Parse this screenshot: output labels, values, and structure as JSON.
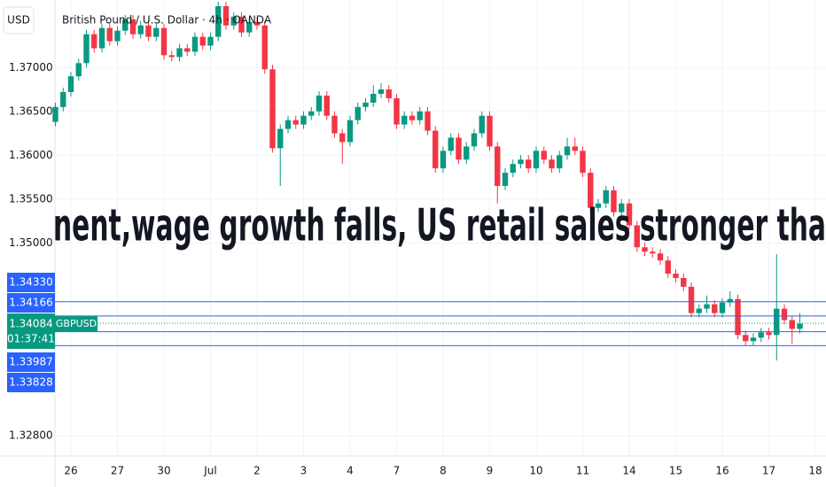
{
  "header": {
    "currency": "USD"
  },
  "chart_data": {
    "type": "candlestick",
    "title": "British Pound / U.S. Dollar · 4h · OANDA",
    "annotation": "nent,wage growth falls, US retail sales stronger tha",
    "up_color": "#089981",
    "down_color": "#f23645",
    "level_color": "#2962ff",
    "grid": true,
    "ylim": [
      1.3257,
      1.3777
    ],
    "yticks": [
      {
        "value": 1.328,
        "label": "1.32800"
      },
      {
        "value": 1.35,
        "label": "1.35000"
      },
      {
        "value": 1.355,
        "label": "1.35500"
      },
      {
        "value": 1.36,
        "label": "1.36000"
      },
      {
        "value": 1.365,
        "label": "1.36500"
      },
      {
        "value": 1.37,
        "label": "1.37000"
      }
    ],
    "categories": [
      null,
      null,
      "26",
      null,
      null,
      null,
      null,
      null,
      "27",
      null,
      null,
      null,
      null,
      null,
      "30",
      null,
      null,
      null,
      null,
      null,
      "Jul",
      null,
      null,
      null,
      null,
      null,
      "2",
      null,
      null,
      null,
      null,
      null,
      "3",
      null,
      null,
      null,
      null,
      null,
      "4",
      null,
      null,
      null,
      null,
      null,
      "7",
      null,
      null,
      null,
      null,
      null,
      "8",
      null,
      null,
      null,
      null,
      null,
      "9",
      null,
      null,
      null,
      null,
      null,
      "10",
      null,
      null,
      null,
      null,
      null,
      "11",
      null,
      null,
      null,
      null,
      null,
      "14",
      null,
      null,
      null,
      null,
      null,
      "15",
      null,
      null,
      null,
      null,
      null,
      "16",
      null,
      null,
      null,
      null,
      null,
      "17",
      null,
      null,
      null,
      null,
      null,
      "18"
    ],
    "open": [
      1.3638,
      1.3655,
      1.3672,
      1.369,
      1.3705,
      1.3738,
      1.3722,
      1.3745,
      1.373,
      1.3742,
      1.3755,
      1.3738,
      1.3748,
      1.3735,
      1.3745,
      1.3714,
      1.3712,
      1.3722,
      1.3718,
      1.3735,
      1.3725,
      1.3735,
      1.377,
      1.3748,
      1.3758,
      1.374,
      1.3752,
      1.3748,
      1.3698,
      1.3608,
      1.363,
      1.364,
      1.3635,
      1.3645,
      1.365,
      1.3668,
      1.3645,
      1.3625,
      1.3615,
      1.364,
      1.3655,
      1.366,
      1.367,
      1.3675,
      1.3665,
      1.3635,
      1.3645,
      1.364,
      1.365,
      1.3628,
      1.3585,
      1.3605,
      1.362,
      1.3595,
      1.361,
      1.3625,
      1.3645,
      1.361,
      1.3565,
      1.358,
      1.359,
      1.3595,
      1.3585,
      1.3605,
      1.3595,
      1.3585,
      1.36,
      1.361,
      1.3605,
      1.358,
      1.354,
      1.3545,
      1.356,
      1.3535,
      1.3545,
      1.352,
      1.3495,
      1.349,
      1.3488,
      1.348,
      1.3465,
      1.346,
      1.345,
      1.342,
      1.3425,
      1.343,
      1.342,
      1.3432,
      1.3436,
      1.3395,
      1.3388,
      1.3392,
      1.3398,
      1.3395,
      1.3425,
      1.3412,
      1.3402,
      null,
      null
    ],
    "high": [
      1.366,
      1.3677,
      1.3695,
      1.371,
      1.3743,
      1.3743,
      1.375,
      1.375,
      1.3747,
      1.376,
      1.376,
      1.3753,
      1.3753,
      1.375,
      1.375,
      1.3719,
      1.3727,
      1.3727,
      1.374,
      1.374,
      1.374,
      1.3775,
      1.3775,
      1.3763,
      1.3763,
      1.3757,
      1.3757,
      1.3753,
      1.3703,
      1.3635,
      1.3645,
      1.3645,
      1.365,
      1.3655,
      1.3673,
      1.3673,
      1.365,
      1.363,
      1.3645,
      1.366,
      1.3665,
      1.368,
      1.3682,
      1.368,
      1.367,
      1.365,
      1.365,
      1.3655,
      1.3655,
      1.3633,
      1.361,
      1.3625,
      1.3625,
      1.3615,
      1.363,
      1.365,
      1.365,
      1.3615,
      1.3585,
      1.3595,
      1.36,
      1.36,
      1.361,
      1.361,
      1.36,
      1.3605,
      1.362,
      1.362,
      1.361,
      1.3585,
      1.355,
      1.3565,
      1.3565,
      1.355,
      1.355,
      1.3525,
      1.35,
      1.3495,
      1.3493,
      1.3485,
      1.347,
      1.3465,
      1.3455,
      1.343,
      1.344,
      1.3435,
      1.3437,
      1.3445,
      1.3441,
      1.34,
      1.3397,
      1.3403,
      1.3403,
      1.3487,
      1.343,
      1.3417,
      1.342,
      null,
      null
    ],
    "low": [
      1.3633,
      1.365,
      1.3667,
      1.3685,
      1.37,
      1.3717,
      1.3717,
      1.3725,
      1.3725,
      1.3737,
      1.3733,
      1.3733,
      1.373,
      1.373,
      1.3709,
      1.3707,
      1.3707,
      1.3713,
      1.3713,
      1.372,
      1.372,
      1.373,
      1.3743,
      1.3743,
      1.3735,
      1.3735,
      1.3743,
      1.3693,
      1.3603,
      1.3565,
      1.3625,
      1.363,
      1.363,
      1.364,
      1.3645,
      1.364,
      1.362,
      1.359,
      1.361,
      1.3635,
      1.365,
      1.3655,
      1.3665,
      1.366,
      1.363,
      1.363,
      1.3635,
      1.3635,
      1.3623,
      1.358,
      1.358,
      1.36,
      1.359,
      1.359,
      1.3605,
      1.362,
      1.3605,
      1.3545,
      1.356,
      1.3575,
      1.3585,
      1.358,
      1.358,
      1.359,
      1.358,
      1.358,
      1.3595,
      1.36,
      1.3575,
      1.3535,
      1.3535,
      1.354,
      1.353,
      1.353,
      1.3515,
      1.349,
      1.3485,
      1.3483,
      1.3475,
      1.346,
      1.3455,
      1.3445,
      1.3415,
      1.3415,
      1.342,
      1.3415,
      1.3415,
      1.3427,
      1.339,
      1.3383,
      1.3383,
      1.3387,
      1.339,
      1.3366,
      1.3407,
      1.3385,
      1.3397,
      null,
      null
    ],
    "close": [
      1.3655,
      1.3672,
      1.369,
      1.3705,
      1.3738,
      1.3722,
      1.3745,
      1.373,
      1.3742,
      1.3755,
      1.3738,
      1.3748,
      1.3735,
      1.3745,
      1.3714,
      1.3712,
      1.3722,
      1.3718,
      1.3735,
      1.3725,
      1.3735,
      1.377,
      1.3748,
      1.3758,
      1.374,
      1.3752,
      1.3748,
      1.3698,
      1.3608,
      1.363,
      1.364,
      1.3635,
      1.3645,
      1.365,
      1.3668,
      1.3645,
      1.3625,
      1.3615,
      1.364,
      1.3655,
      1.366,
      1.367,
      1.3675,
      1.3665,
      1.3635,
      1.3645,
      1.364,
      1.365,
      1.3628,
      1.3585,
      1.3605,
      1.362,
      1.3595,
      1.361,
      1.3625,
      1.3645,
      1.361,
      1.3565,
      1.358,
      1.359,
      1.3595,
      1.3585,
      1.3605,
      1.3595,
      1.3585,
      1.36,
      1.361,
      1.3605,
      1.358,
      1.354,
      1.3545,
      1.356,
      1.3535,
      1.3545,
      1.352,
      1.3495,
      1.349,
      1.3488,
      1.348,
      1.3465,
      1.346,
      1.345,
      1.342,
      1.3425,
      1.343,
      1.342,
      1.3432,
      1.3436,
      1.3395,
      1.3388,
      1.3392,
      1.3398,
      1.3395,
      1.3425,
      1.3412,
      1.3402,
      1.3408,
      null,
      null
    ],
    "levels": [
      {
        "value": 1.3433,
        "label": "1.34330"
      },
      {
        "value": 1.34166,
        "label": "1.34166"
      },
      {
        "value": 1.33987,
        "label": "1.33987"
      },
      {
        "value": 1.33828,
        "label": "1.33828"
      }
    ],
    "current": {
      "value": 1.34084,
      "label": "1.34084",
      "countdown": "01:37:41",
      "symbol": "GBPUSD"
    }
  }
}
